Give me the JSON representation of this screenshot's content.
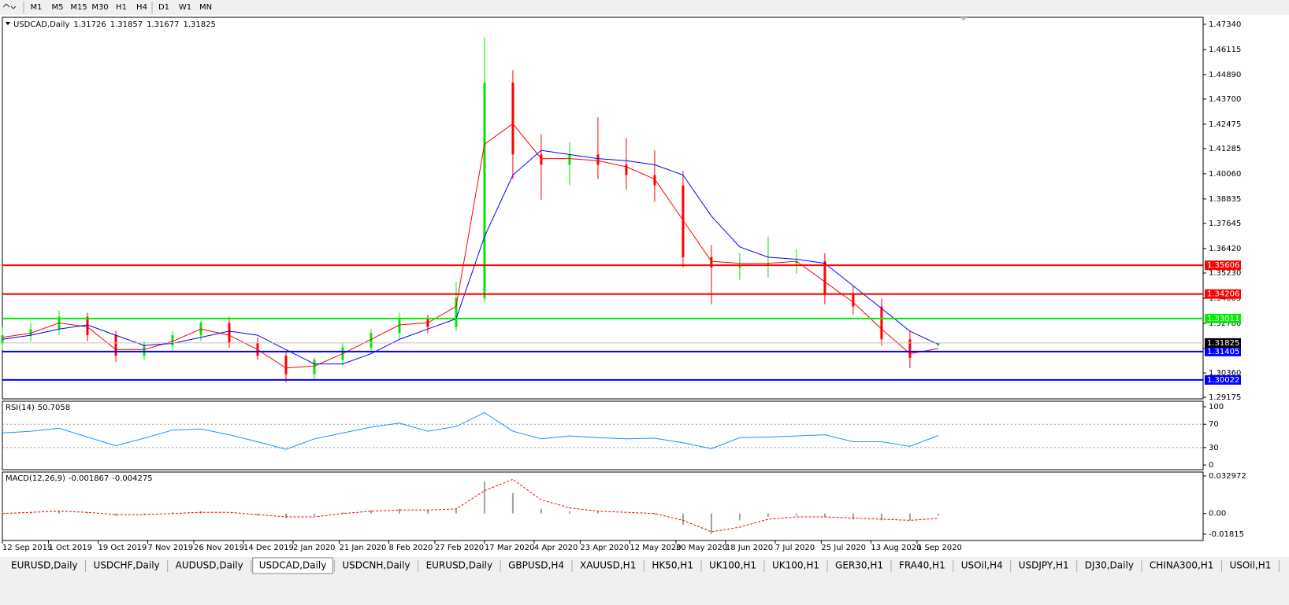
{
  "toolbar": {
    "timeframes": [
      "M1",
      "M5",
      "M15",
      "M30",
      "H1",
      "H4",
      "D1",
      "W1",
      "MN"
    ]
  },
  "chart_data": [
    {
      "type": "candlestick",
      "title": "USDCAD,Daily",
      "x": [
        0,
        8,
        16,
        24,
        32,
        40,
        48,
        56,
        64,
        72,
        80,
        88,
        96,
        104,
        112,
        120,
        128,
        136,
        144,
        152,
        160,
        168,
        176,
        184,
        192,
        200,
        208,
        216,
        224,
        232,
        240,
        248,
        256,
        264
      ],
      "open": [
        1.318,
        1.322,
        1.325,
        1.331,
        1.322,
        1.312,
        1.317,
        1.322,
        1.328,
        1.318,
        1.312,
        1.303,
        1.31,
        1.316,
        1.323,
        1.33,
        1.326,
        1.34,
        1.445,
        1.41,
        1.405,
        1.41,
        1.405,
        1.4,
        1.395,
        1.36,
        1.355,
        1.356,
        1.357,
        1.358,
        1.342,
        1.336,
        1.32,
        1.31726
      ],
      "high": [
        1.326,
        1.328,
        1.334,
        1.333,
        1.324,
        1.319,
        1.324,
        1.329,
        1.331,
        1.321,
        1.314,
        1.311,
        1.318,
        1.325,
        1.333,
        1.332,
        1.348,
        1.467,
        1.451,
        1.42,
        1.416,
        1.428,
        1.418,
        1.412,
        1.402,
        1.366,
        1.362,
        1.37,
        1.364,
        1.362,
        1.346,
        1.34,
        1.324,
        1.31857
      ],
      "low": [
        1.315,
        1.319,
        1.322,
        1.319,
        1.309,
        1.31,
        1.314,
        1.319,
        1.316,
        1.31,
        1.299,
        1.3,
        1.307,
        1.313,
        1.32,
        1.323,
        1.324,
        1.338,
        1.398,
        1.388,
        1.395,
        1.398,
        1.393,
        1.387,
        1.355,
        1.337,
        1.349,
        1.35,
        1.352,
        1.337,
        1.332,
        1.317,
        1.306,
        1.31677
      ],
      "close": [
        1.322,
        1.325,
        1.331,
        1.322,
        1.312,
        1.317,
        1.322,
        1.328,
        1.318,
        1.312,
        1.303,
        1.31,
        1.316,
        1.323,
        1.33,
        1.326,
        1.34,
        1.445,
        1.41,
        1.405,
        1.41,
        1.405,
        1.4,
        1.395,
        1.36,
        1.355,
        1.356,
        1.357,
        1.358,
        1.342,
        1.336,
        1.32,
        1.311,
        1.31825
      ],
      "up_color": "#00e600",
      "down_color": "#ff0000",
      "series": [
        {
          "color": "#ff0000",
          "values": [
            1.321,
            1.323,
            1.328,
            1.326,
            1.315,
            1.315,
            1.319,
            1.325,
            1.322,
            1.315,
            1.306,
            1.307,
            1.313,
            1.32,
            1.327,
            1.328,
            1.336,
            1.415,
            1.425,
            1.408,
            1.408,
            1.407,
            1.404,
            1.398,
            1.378,
            1.358,
            1.357,
            1.357,
            1.358,
            1.348,
            1.338,
            1.325,
            1.313,
            1.3155
          ]
        },
        {
          "color": "#0000ff",
          "values": [
            1.32,
            1.322,
            1.325,
            1.327,
            1.322,
            1.317,
            1.318,
            1.321,
            1.324,
            1.322,
            1.315,
            1.308,
            1.308,
            1.313,
            1.32,
            1.325,
            1.33,
            1.37,
            1.4,
            1.412,
            1.41,
            1.408,
            1.407,
            1.405,
            1.4,
            1.38,
            1.365,
            1.36,
            1.359,
            1.357,
            1.346,
            1.335,
            1.324,
            1.3175
          ]
        }
      ],
      "levels": [
        {
          "value": 1.35606,
          "color": "#ff0000"
        },
        {
          "value": 1.34206,
          "color": "#ff0000"
        },
        {
          "value": 1.33011,
          "color": "#00ee00"
        },
        {
          "value": 1.31405,
          "color": "#0000ff"
        },
        {
          "value": 1.30022,
          "color": "#0000ff"
        }
      ],
      "xlim": [
        0,
        338.7
      ],
      "ylim": [
        1.291,
        1.4768
      ],
      "yticks": [
        {
          "value": 1.4734,
          "label": "1.47340"
        },
        1.46115,
        {
          "value": 1.4489,
          "label": "1.44890"
        },
        {
          "value": 1.437,
          "label": "1.43700"
        },
        1.42475,
        1.41285,
        {
          "value": 1.4006,
          "label": "1.40060"
        },
        1.38835,
        1.37645,
        {
          "value": 1.3642,
          "label": "1.36420"
        },
        {
          "value": 1.3523,
          "label": "1.35230"
        },
        1.34005,
        {
          "value": 1.3278,
          "label": "1.32780"
        },
        1.31555,
        {
          "value": 1.3036,
          "label": "1.30360"
        },
        1.29175
      ],
      "xticks": [
        {
          "value": 0,
          "label": "12 Sep 2019"
        },
        {
          "value": 13,
          "label": "1 Oct 2019"
        },
        {
          "value": 27,
          "label": "19 Oct 2019"
        },
        {
          "value": 41,
          "label": "7 Nov 2019"
        },
        {
          "value": 54,
          "label": "26 Nov 2019"
        },
        {
          "value": 68,
          "label": "14 Dec 2019"
        },
        {
          "value": 82,
          "label": "2 Jan 2020"
        },
        {
          "value": 95,
          "label": "21 Jan 2020"
        },
        {
          "value": 109,
          "label": "8 Feb 2020"
        },
        {
          "value": 122,
          "label": "27 Feb 2020"
        },
        {
          "value": 136,
          "label": "17 Mar 2020"
        },
        {
          "value": 150,
          "label": "4 Apr 2020"
        },
        {
          "value": 163,
          "label": "23 Apr 2020"
        },
        {
          "value": 177,
          "label": "12 May 2020"
        },
        {
          "value": 190,
          "label": "30 May 2020"
        },
        {
          "value": 204,
          "label": "18 Jun 2020"
        },
        {
          "value": 218,
          "label": "7 Jul 2020"
        },
        {
          "value": 231,
          "label": "25 Jul 2020"
        },
        {
          "value": 245,
          "label": "13 Aug 2020"
        },
        {
          "value": 258,
          "label": "1 Sep 2020"
        }
      ]
    },
    {
      "type": "line",
      "title": "RSI(14)",
      "color": "#1e90ff",
      "values": [
        55,
        58,
        63,
        48,
        33,
        46,
        60,
        62,
        52,
        40,
        27,
        45,
        55,
        65,
        72,
        58,
        66,
        90,
        58,
        45,
        50,
        47,
        45,
        46,
        38,
        28,
        47,
        48,
        50,
        52,
        40,
        40,
        32,
        50.7058
      ],
      "levels": [
        70,
        30
      ],
      "ylim": [
        -8,
        109.5
      ],
      "yticks": [
        100,
        70,
        30,
        0
      ]
    },
    {
      "type": "macd",
      "title": "MACD(12,26,9)",
      "hist_color": "#a0a0a0",
      "signal_color": "#ff0000",
      "values": [
        0.001,
        0.001,
        0.002,
        0.001,
        -0.002,
        -0.001,
        0.001,
        0.002,
        0.0,
        -0.002,
        -0.004,
        -0.002,
        0.001,
        0.003,
        0.004,
        0.003,
        0.004,
        0.028,
        0.018,
        0.004,
        0.002,
        0.002,
        0.0,
        -0.001,
        -0.01,
        -0.018,
        -0.006,
        -0.003,
        -0.002,
        -0.003,
        -0.005,
        -0.006,
        -0.006,
        -0.001867
      ],
      "signal": [
        0.0,
        0.001,
        0.002,
        0.001,
        -0.001,
        -0.001,
        0.0,
        0.001,
        0.001,
        -0.001,
        -0.003,
        -0.003,
        0.0,
        0.002,
        0.003,
        0.003,
        0.004,
        0.02,
        0.03,
        0.012,
        0.005,
        0.002,
        0.001,
        0.0,
        -0.006,
        -0.016,
        -0.012,
        -0.005,
        -0.003,
        -0.003,
        -0.004,
        -0.005,
        -0.006,
        -0.004275
      ],
      "ylim": [
        -0.0237,
        0.0364
      ],
      "yticks": [
        0.032972,
        {
          "value": 0,
          "label": "0.00"
        },
        -0.01815
      ]
    }
  ],
  "tabs": {
    "items": [
      "EURUSD,Daily",
      "USDCHF,Daily",
      "AUDUSD,Daily",
      "USDCAD,Daily",
      "USDCNH,Daily",
      "EURUSD,Daily",
      "GBPUSD,H4",
      "XAUUSD,H1",
      "HK50,H1",
      "UK100,H1",
      "UK100,H1",
      "GER30,H1",
      "FRA40,H1",
      "USOil,H4",
      "USDJPY,H1",
      "DJ30,Daily",
      "CHINA300,H1",
      "USOil,H1"
    ],
    "active": 3
  }
}
